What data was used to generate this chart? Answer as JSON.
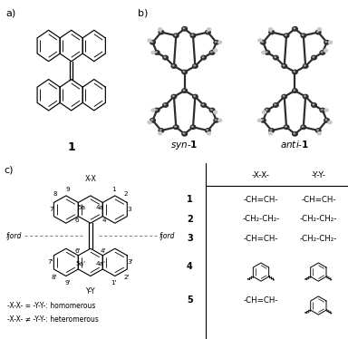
{
  "fig_width": 3.84,
  "fig_height": 3.74,
  "dpi": 100,
  "bg_color": "#ffffff",
  "bond_lw": 0.85,
  "inner_lw": 0.65,
  "label_fontsize": 8,
  "num_fontsize": 5.5,
  "table_fontsize": 6.5,
  "row_labels": [
    "1",
    "2",
    "3",
    "4",
    "5"
  ],
  "col_x_text": [
    "-CH=CH-",
    "-CH₂-CH₂-",
    "-CH=CH-",
    "",
    "-CH=CH-"
  ],
  "col_y_text": [
    "-CH=CH-",
    "-CH₂-CH₂-",
    "-CH₂-CH₂-",
    "",
    ""
  ],
  "legend1": "-X-X- = -Y-Y-: homomerous",
  "legend2": "-X-X- ≠ -Y-Y-: heteromerous",
  "dark_atom": "#3a3a3a",
  "light_atom": "#c8c8c8",
  "mid_atom": "#888888"
}
